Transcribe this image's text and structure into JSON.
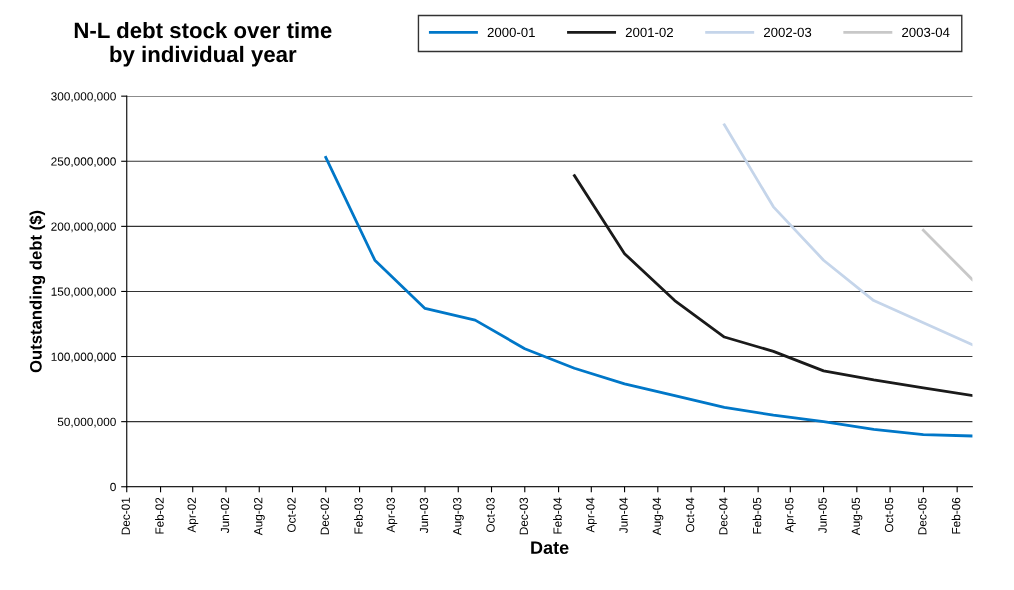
{
  "chart_data": {
    "type": "line",
    "title": "N-L debt stock over time\nby individual year",
    "xlabel": "Date",
    "ylabel": "Outstanding debt ($)",
    "series": [
      {
        "name": "2000-01",
        "color": "#0077c8",
        "x": [
          "2002-12",
          "2003-03",
          "2003-06",
          "2003-09",
          "2003-12",
          "2004-03",
          "2004-06",
          "2004-09",
          "2004-12",
          "2005-03",
          "2005-06",
          "2005-09",
          "2005-12",
          "2006-03"
        ],
        "values": [
          253000000,
          174000000,
          137000000,
          128000000,
          106000000,
          91000000,
          79000000,
          70000000,
          61000000,
          55000000,
          50000000,
          44000000,
          40000000,
          39000000
        ]
      },
      {
        "name": "2001-02",
        "color": "#1a1a1a",
        "x": [
          "2004-03",
          "2004-06",
          "2004-09",
          "2004-12",
          "2005-03",
          "2005-06",
          "2005-09",
          "2005-12",
          "2006-03"
        ],
        "values": [
          239000000,
          179000000,
          143000000,
          115000000,
          104000000,
          89000000,
          82000000,
          76000000,
          70000000
        ]
      },
      {
        "name": "2002-03",
        "color": "#c5d5ea",
        "x": [
          "2004-12",
          "2005-03",
          "2005-06",
          "2005-09",
          "2005-12",
          "2006-03"
        ],
        "values": [
          278000000,
          215000000,
          174000000,
          143000000,
          126000000,
          109000000
        ]
      },
      {
        "name": "2003-04",
        "color": "#c8c8c8",
        "x": [
          "2005-12",
          "2006-03"
        ],
        "values": [
          197000000,
          159000000
        ]
      }
    ],
    "xlim": [
      "2001-12",
      "2006-03"
    ],
    "xticks": [
      {
        "value": "2001-12",
        "label": "Dec-01"
      },
      {
        "value": "2002-02",
        "label": "Feb-02"
      },
      {
        "value": "2002-04",
        "label": "Apr-02"
      },
      {
        "value": "2002-06",
        "label": "Jun-02"
      },
      {
        "value": "2002-08",
        "label": "Aug-02"
      },
      {
        "value": "2002-10",
        "label": "Oct-02"
      },
      {
        "value": "2002-12",
        "label": "Dec-02"
      },
      {
        "value": "2003-02",
        "label": "Feb-03"
      },
      {
        "value": "2003-04",
        "label": "Apr-03"
      },
      {
        "value": "2003-06",
        "label": "Jun-03"
      },
      {
        "value": "2003-08",
        "label": "Aug-03"
      },
      {
        "value": "2003-10",
        "label": "Oct-03"
      },
      {
        "value": "2003-12",
        "label": "Dec-03"
      },
      {
        "value": "2004-02",
        "label": "Feb-04"
      },
      {
        "value": "2004-04",
        "label": "Apr-04"
      },
      {
        "value": "2004-06",
        "label": "Jun-04"
      },
      {
        "value": "2004-08",
        "label": "Aug-04"
      },
      {
        "value": "2004-10",
        "label": "Oct-04"
      },
      {
        "value": "2004-12",
        "label": "Dec-04"
      },
      {
        "value": "2005-02",
        "label": "Feb-05"
      },
      {
        "value": "2005-04",
        "label": "Apr-05"
      },
      {
        "value": "2005-06",
        "label": "Jun-05"
      },
      {
        "value": "2005-08",
        "label": "Aug-05"
      },
      {
        "value": "2005-10",
        "label": "Oct-05"
      },
      {
        "value": "2005-12",
        "label": "Dec-05"
      },
      {
        "value": "2006-02",
        "label": "Feb-06"
      }
    ],
    "ylim": [
      0,
      300000000
    ],
    "yticks": [
      {
        "value": 0,
        "label": "0"
      },
      {
        "value": 50000000,
        "label": "50,000,000"
      },
      {
        "value": 100000000,
        "label": "100,000,000"
      },
      {
        "value": 150000000,
        "label": "150,000,000"
      },
      {
        "value": 200000000,
        "label": "200,000,000"
      },
      {
        "value": 250000000,
        "label": "250,000,000"
      },
      {
        "value": 300000000,
        "label": "300,000,000"
      }
    ],
    "grid": "y",
    "legend": "top",
    "marker": "none",
    "line_style": "solid"
  }
}
